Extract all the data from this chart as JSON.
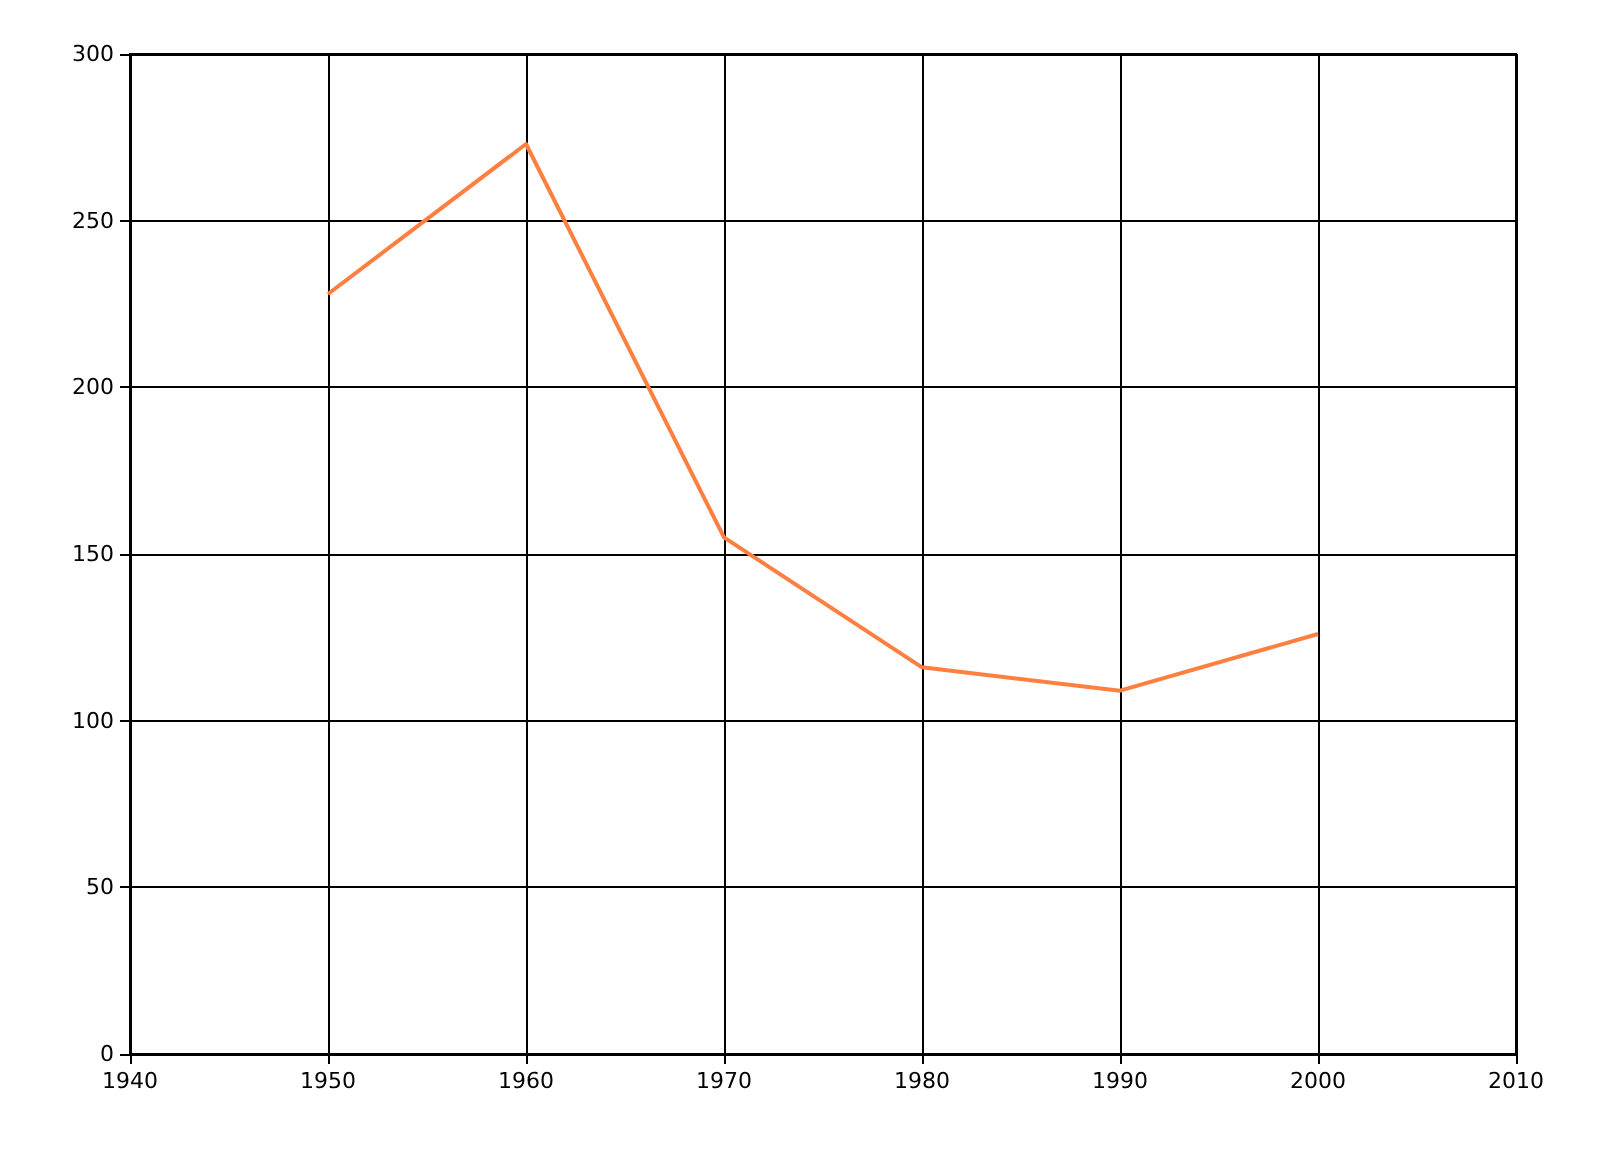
{
  "chart_data": {
    "type": "line",
    "x": [
      1950,
      1960,
      1970,
      1980,
      1990,
      2000
    ],
    "series": [
      {
        "color": "#ff7f40",
        "values": [
          228,
          273,
          155,
          116,
          109,
          126
        ]
      }
    ],
    "xlim": [
      1940,
      2010
    ],
    "xticks": [
      1940,
      1950,
      1960,
      1970,
      1980,
      1990,
      2000,
      2010
    ],
    "ylim": [
      0,
      300
    ],
    "yticks": [
      0,
      50,
      100,
      150,
      200,
      250,
      300
    ],
    "grid": true,
    "marker": "none",
    "line_style": "solid"
  }
}
